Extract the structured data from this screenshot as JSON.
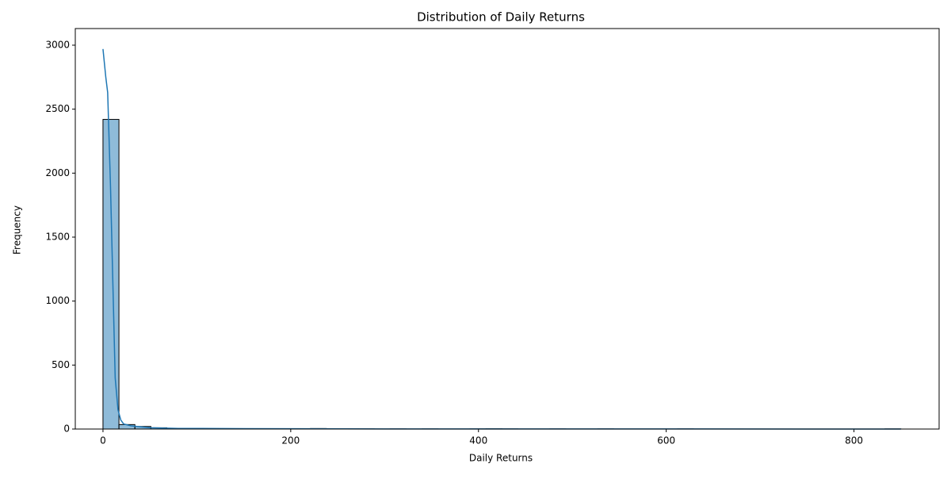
{
  "chart_data": {
    "type": "histogram",
    "title": "Distribution of Daily Returns",
    "x_label": "Daily Returns",
    "y_label": "Frequency",
    "bins": [
      0,
      17,
      34,
      51,
      68,
      85,
      102,
      119,
      136,
      153,
      170,
      187,
      204,
      221,
      238,
      255,
      272,
      289,
      306,
      323,
      340,
      357,
      374,
      391,
      408,
      425,
      442,
      459,
      476,
      493,
      510,
      527,
      544,
      561,
      578,
      595,
      612,
      629,
      646,
      663,
      680,
      697,
      714,
      731,
      748,
      765,
      782,
      799,
      816,
      833,
      850
    ],
    "counts": [
      2420,
      35,
      20,
      10,
      4,
      6,
      3,
      2,
      3,
      1,
      2,
      3,
      1,
      4,
      1,
      1,
      1,
      0,
      1,
      0,
      1,
      0,
      0,
      1,
      2,
      1,
      0,
      0,
      1,
      0,
      0,
      1,
      0,
      0,
      0,
      0,
      1,
      0,
      0,
      0,
      0,
      0,
      0,
      0,
      0,
      0,
      0,
      0,
      0,
      1
    ],
    "color": "#1f77b4",
    "edgecolor": "#000000",
    "kde": {
      "color": "#1f77b4",
      "x": [
        0,
        3,
        5,
        8,
        11,
        13,
        16,
        19,
        22,
        30,
        50,
        80,
        150,
        300,
        500,
        850
      ],
      "y": [
        2970,
        2750,
        2630,
        1900,
        1000,
        400,
        150,
        70,
        40,
        25,
        10,
        5,
        3,
        1,
        1,
        0
      ]
    },
    "xlim": [
      -29.5,
      890.7
    ],
    "ylim": [
      0,
      3130
    ],
    "xticks": [
      0,
      200,
      400,
      600,
      800
    ],
    "yticks": [
      0,
      500,
      1000,
      1500,
      2000,
      2500,
      3000
    ],
    "grid": false
  }
}
